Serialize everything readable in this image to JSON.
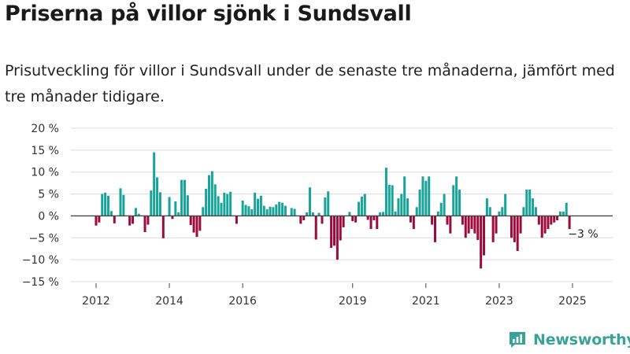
{
  "title": "Priserna på villor sjönk i Sundsvall",
  "subtitle": "Prisutveckling för villor i Sundsvall under de senaste tre månaderna, jämfört med tre månader tidigare.",
  "brand": {
    "name": "Newsworthy",
    "icon": "newsworthy-logo-icon"
  },
  "colors": {
    "positive": "#1aa399",
    "negative": "#9b0b3b",
    "grid": "#dcdcdc",
    "zero_line": "#444444"
  },
  "chart_data": {
    "type": "bar",
    "ylabel": "",
    "xlabel": "",
    "ylim": [
      -15,
      20
    ],
    "y_ticks": [
      20,
      15,
      10,
      5,
      0,
      -5,
      -10,
      -15
    ],
    "y_tick_labels": [
      "20 %",
      "15 %",
      "10 %",
      "5 %",
      "0 %",
      "−5 %",
      "−10 %",
      "−15 %"
    ],
    "x_tick_labels": [
      "2012",
      "2014",
      "2016",
      "2019",
      "2021",
      "2023",
      "2025"
    ],
    "x_tick_dates": [
      "2012-01",
      "2014-01",
      "2016-01",
      "2019-01",
      "2021-01",
      "2023-01",
      "2025-01"
    ],
    "grid": true,
    "annotation": {
      "label": "−3 %",
      "date": "2025-05",
      "value": -3
    },
    "bars": [
      [
        "2012-01",
        -2.2
      ],
      [
        "2012-02",
        -1.5
      ],
      [
        "2012-03",
        5
      ],
      [
        "2012-04",
        5.3
      ],
      [
        "2012-05",
        4.6
      ],
      [
        "2012-06",
        1.1
      ],
      [
        "2012-07",
        -1.7
      ],
      [
        "2012-09",
        6.3
      ],
      [
        "2012-10",
        4.8
      ],
      [
        "2012-12",
        -2.2
      ],
      [
        "2013-01",
        -1.8
      ],
      [
        "2013-02",
        1.8
      ],
      [
        "2013-03",
        0.5
      ],
      [
        "2013-05",
        -3.7
      ],
      [
        "2013-06",
        -2
      ],
      [
        "2013-07",
        5.8
      ],
      [
        "2013-08",
        14.5
      ],
      [
        "2013-09",
        8.8
      ],
      [
        "2013-10",
        5.4
      ],
      [
        "2013-11",
        -5.1
      ],
      [
        "2014-01",
        4.3
      ],
      [
        "2014-02",
        -0.7
      ],
      [
        "2014-03",
        3.3
      ],
      [
        "2014-04",
        0.8
      ],
      [
        "2014-05",
        8.2
      ],
      [
        "2014-06",
        8.2
      ],
      [
        "2014-07",
        4.7
      ],
      [
        "2014-08",
        -2.1
      ],
      [
        "2014-09",
        -3.8
      ],
      [
        "2014-10",
        -4.8
      ],
      [
        "2014-11",
        -3.4
      ],
      [
        "2014-12",
        2
      ],
      [
        "2015-01",
        6.2
      ],
      [
        "2015-02",
        9.3
      ],
      [
        "2015-03",
        10.2
      ],
      [
        "2015-04",
        7.2
      ],
      [
        "2015-05",
        4.5
      ],
      [
        "2015-06",
        3
      ],
      [
        "2015-07",
        5.3
      ],
      [
        "2015-08",
        5
      ],
      [
        "2015-09",
        5.5
      ],
      [
        "2015-11",
        -1.8
      ],
      [
        "2016-01",
        3.5
      ],
      [
        "2016-02",
        2.5
      ],
      [
        "2016-03",
        2.2
      ],
      [
        "2016-04",
        1.5
      ],
      [
        "2016-05",
        5.3
      ],
      [
        "2016-06",
        3.9
      ],
      [
        "2016-07",
        4.6
      ],
      [
        "2016-08",
        2.3
      ],
      [
        "2016-09",
        1.5
      ],
      [
        "2016-10",
        2.1
      ],
      [
        "2016-11",
        2
      ],
      [
        "2016-12",
        2.6
      ],
      [
        "2017-01",
        3.2
      ],
      [
        "2017-02",
        3
      ],
      [
        "2017-03",
        2.3
      ],
      [
        "2017-05",
        1.8
      ],
      [
        "2017-06",
        1.6
      ],
      [
        "2017-08",
        -1.8
      ],
      [
        "2017-09",
        -1
      ],
      [
        "2017-10",
        0.8
      ],
      [
        "2017-11",
        6.5
      ],
      [
        "2017-12",
        0.8
      ],
      [
        "2018-01",
        -5.4
      ],
      [
        "2018-02",
        0.7
      ],
      [
        "2018-03",
        -1.8
      ],
      [
        "2018-04",
        4.2
      ],
      [
        "2018-05",
        5.6
      ],
      [
        "2018-06",
        -7.3
      ],
      [
        "2018-07",
        -6.8
      ],
      [
        "2018-08",
        -10
      ],
      [
        "2018-09",
        -5.6
      ],
      [
        "2018-10",
        -2.6
      ],
      [
        "2018-12",
        0.9
      ],
      [
        "2019-01",
        -1.2
      ],
      [
        "2019-02",
        -1.5
      ],
      [
        "2019-03",
        3.2
      ],
      [
        "2019-04",
        4.4
      ],
      [
        "2019-05",
        5
      ],
      [
        "2019-06",
        -0.9
      ],
      [
        "2019-07",
        -3
      ],
      [
        "2019-08",
        -1
      ],
      [
        "2019-09",
        -3
      ],
      [
        "2019-10",
        0.8
      ],
      [
        "2019-11",
        0.9
      ],
      [
        "2019-12",
        11
      ],
      [
        "2020-01",
        7.1
      ],
      [
        "2020-02",
        7
      ],
      [
        "2020-03",
        1
      ],
      [
        "2020-04",
        4
      ],
      [
        "2020-05",
        5
      ],
      [
        "2020-06",
        9
      ],
      [
        "2020-07",
        4
      ],
      [
        "2020-08",
        -1.5
      ],
      [
        "2020-09",
        -3
      ],
      [
        "2020-10",
        2
      ],
      [
        "2020-11",
        6
      ],
      [
        "2020-12",
        9
      ],
      [
        "2021-01",
        8
      ],
      [
        "2021-02",
        9
      ],
      [
        "2021-03",
        -2
      ],
      [
        "2021-04",
        -6
      ],
      [
        "2021-05",
        1
      ],
      [
        "2021-06",
        3
      ],
      [
        "2021-07",
        5
      ],
      [
        "2021-08",
        -2
      ],
      [
        "2021-09",
        -4
      ],
      [
        "2021-10",
        7
      ],
      [
        "2021-11",
        9
      ],
      [
        "2021-12",
        6
      ],
      [
        "2022-01",
        -2
      ],
      [
        "2022-02",
        -5
      ],
      [
        "2022-03",
        -4
      ],
      [
        "2022-04",
        -3
      ],
      [
        "2022-05",
        -4
      ],
      [
        "2022-06",
        -5.5
      ],
      [
        "2022-07",
        -12
      ],
      [
        "2022-08",
        -9
      ],
      [
        "2022-09",
        4
      ],
      [
        "2022-10",
        2
      ],
      [
        "2022-11",
        -6
      ],
      [
        "2022-12",
        -4
      ],
      [
        "2023-01",
        1
      ],
      [
        "2023-02",
        2
      ],
      [
        "2023-03",
        5
      ],
      [
        "2023-05",
        -5
      ],
      [
        "2023-06",
        -6
      ],
      [
        "2023-07",
        -8
      ],
      [
        "2023-08",
        -4
      ],
      [
        "2023-09",
        2
      ],
      [
        "2023-10",
        6
      ],
      [
        "2023-11",
        6
      ],
      [
        "2023-12",
        4
      ],
      [
        "2024-01",
        2
      ],
      [
        "2024-02",
        -2
      ],
      [
        "2024-03",
        -5
      ],
      [
        "2024-04",
        -4
      ],
      [
        "2024-05",
        -3
      ],
      [
        "2024-06",
        -2
      ],
      [
        "2024-07",
        -1.5
      ],
      [
        "2024-08",
        -1
      ],
      [
        "2024-09",
        1
      ],
      [
        "2024-10",
        1
      ],
      [
        "2024-11",
        3
      ],
      [
        "2024-12",
        -3
      ]
    ]
  }
}
